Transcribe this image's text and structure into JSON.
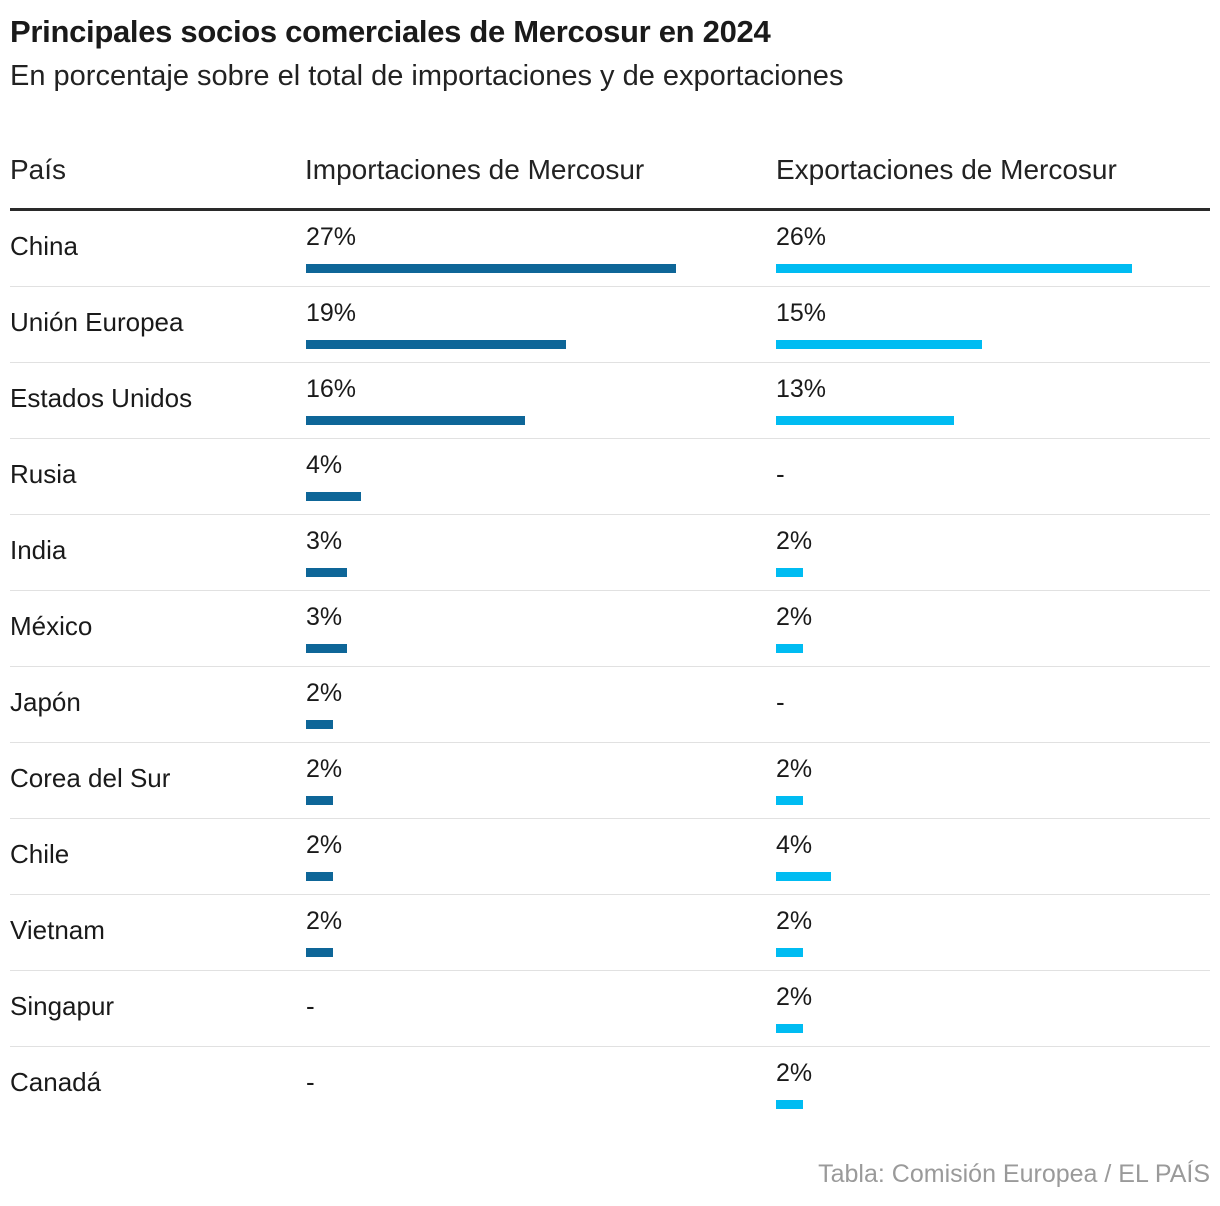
{
  "header": {
    "title": "Principales socios comerciales de Mercosur en 2024",
    "subtitle": "En porcentaje sobre el total de importaciones y de exportaciones"
  },
  "columns": {
    "country": "País",
    "imports": "Importaciones de Mercosur",
    "exports": "Exportaciones de Mercosur"
  },
  "colors": {
    "imports": "#0e6698",
    "exports": "#00bcf2"
  },
  "missing_label": "-",
  "source": "Tabla: Comisión Europea / EL PAÍS",
  "chart_data": {
    "type": "table",
    "bar_scale_max_percent": 27,
    "rows": [
      {
        "country": "China",
        "imports": 27,
        "imports_label": "27%",
        "exports": 26,
        "exports_label": "26%"
      },
      {
        "country": "Unión Europea",
        "imports": 19,
        "imports_label": "19%",
        "exports": 15,
        "exports_label": "15%"
      },
      {
        "country": "Estados Unidos",
        "imports": 16,
        "imports_label": "16%",
        "exports": 13,
        "exports_label": "13%"
      },
      {
        "country": "Rusia",
        "imports": 4,
        "imports_label": "4%",
        "exports": null,
        "exports_label": "-"
      },
      {
        "country": "India",
        "imports": 3,
        "imports_label": "3%",
        "exports": 2,
        "exports_label": "2%"
      },
      {
        "country": "México",
        "imports": 3,
        "imports_label": "3%",
        "exports": 2,
        "exports_label": "2%"
      },
      {
        "country": "Japón",
        "imports": 2,
        "imports_label": "2%",
        "exports": null,
        "exports_label": "-"
      },
      {
        "country": "Corea del Sur",
        "imports": 2,
        "imports_label": "2%",
        "exports": 2,
        "exports_label": "2%"
      },
      {
        "country": "Chile",
        "imports": 2,
        "imports_label": "2%",
        "exports": 4,
        "exports_label": "4%"
      },
      {
        "country": "Vietnam",
        "imports": 2,
        "imports_label": "2%",
        "exports": 2,
        "exports_label": "2%"
      },
      {
        "country": "Singapur",
        "imports": null,
        "imports_label": "-",
        "exports": 2,
        "exports_label": "2%"
      },
      {
        "country": "Canadá",
        "imports": null,
        "imports_label": "-",
        "exports": 2,
        "exports_label": "2%"
      }
    ]
  }
}
